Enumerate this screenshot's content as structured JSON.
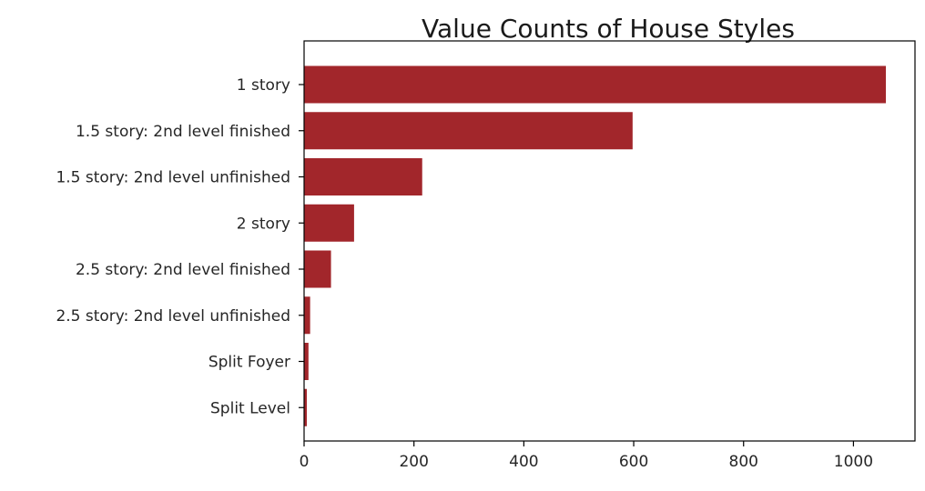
{
  "chart_data": {
    "type": "bar",
    "orientation": "horizontal",
    "title": "Value Counts of House Styles",
    "xlabel": "",
    "ylabel": "",
    "categories": [
      "1 story",
      "1.5 story: 2nd level finished",
      "1.5 story: 2nd level unfinished",
      "2 story",
      "2.5 story: 2nd level finished",
      "2.5 story: 2nd level unfinished",
      "Split Foyer",
      "Split Level"
    ],
    "values": [
      1059,
      598,
      215,
      91,
      49,
      11,
      8,
      5
    ],
    "xlim": [
      0,
      1112
    ],
    "xticks": [
      0,
      200,
      400,
      600,
      800,
      1000
    ],
    "bar_color": "#a2262b",
    "grid": false,
    "legend": "none"
  }
}
